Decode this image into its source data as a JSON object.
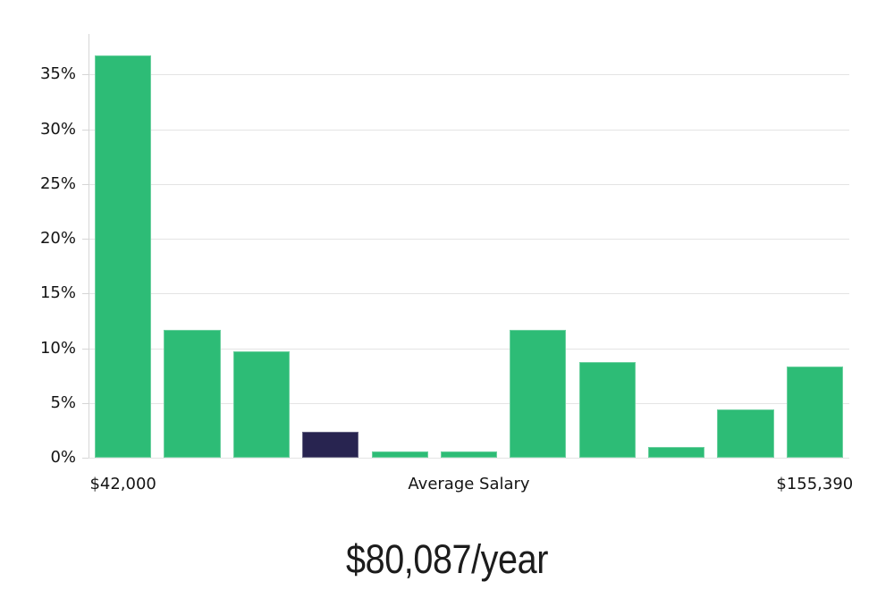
{
  "chart_data": {
    "type": "bar",
    "title": "",
    "values": [
      36.7,
      11.7,
      9.7,
      2.4,
      0.6,
      0.6,
      11.7,
      8.7,
      1.0,
      4.4,
      8.3
    ],
    "highlighted_index": 3,
    "y_tick_labels": [
      "0%",
      "5%",
      "10%",
      "15%",
      "20%",
      "25%",
      "30%",
      "35%"
    ],
    "x_axis_labels": {
      "left": "$42,000",
      "center": "Average Salary",
      "right": "$155,390"
    },
    "ylim": [
      0,
      38.7
    ],
    "grid": true,
    "legend_position": "none",
    "colors": {
      "bar": "#2dbc76",
      "highlight": "#282450",
      "gridline": "#e4e4e4",
      "axis": "#d6d6d6",
      "tick_text": "#141414"
    }
  },
  "caption": {
    "text": "$80,087/year"
  }
}
